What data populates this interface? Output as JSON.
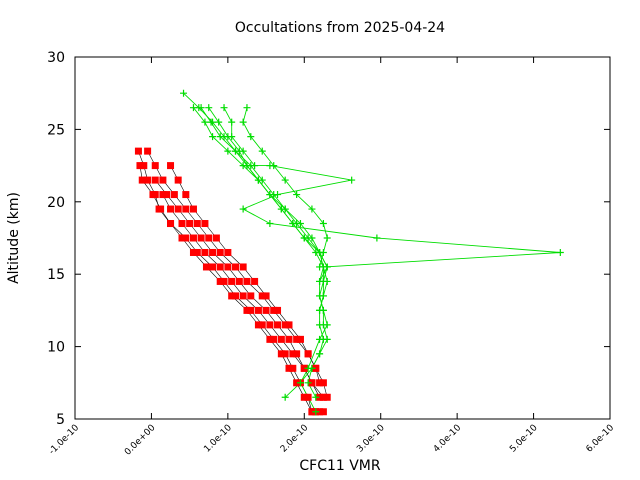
{
  "chart_data": {
    "type": "scatter",
    "title": "Occultations from 2025-04-24",
    "xlabel": "CFC11 VMR",
    "ylabel": "Altitude (km)",
    "xlim": [
      -1e-10,
      6e-10
    ],
    "ylim": [
      5,
      30
    ],
    "x_ticks": [
      -1e-10,
      0,
      1e-10,
      2e-10,
      3e-10,
      4e-10,
      5e-10,
      6e-10
    ],
    "x_tick_labels": [
      "-1.0e-10",
      "0.0e+00",
      "1.0e-10",
      "2.0e-10",
      "3.0e-10",
      "4.0e-10",
      "5.0e-10",
      "6.0e-10"
    ],
    "y_ticks": [
      5,
      10,
      15,
      20,
      25,
      30
    ],
    "y_tick_labels": [
      "5",
      "10",
      "15",
      "20",
      "25",
      "30"
    ],
    "grid": false,
    "colors": {
      "red_series": "#ff0000",
      "green_series": "#00dd00",
      "connector": "#000000"
    },
    "series": [
      {
        "marker": "square",
        "color": "#ff0000",
        "profiles": [
          {
            "x": [
              -1.7e-11,
              -1e-11,
              -5e-12,
              5e-12,
              1e-11,
              2.5e-11,
              4.5e-11,
              6e-11,
              8e-11,
              9.5e-11,
              1.1e-10,
              1.3e-10,
              1.45e-10,
              1.6e-10,
              1.75e-10,
              1.85e-10,
              1.95e-10,
              2.05e-10,
              2.1e-10,
              2.15e-10,
              2.15e-10,
              2.2e-10,
              2.25e-10
            ],
            "y": [
              23.5,
              22.5,
              21.5,
              20.5,
              19.5,
              18.5,
              17.5,
              16.5,
              15.5,
              14.5,
              13.5,
              12.5,
              11.5,
              10.5,
              9.5,
              8.5,
              7.5,
              6.5,
              5.5,
              5.5,
              5.5,
              5.5,
              5.5
            ]
          },
          {
            "x": [
              -1.5e-11,
              -1.2e-11,
              2e-12,
              1.2e-11,
              2.5e-11,
              4e-11,
              5.5e-11,
              7.2e-11,
              9e-11,
              1.05e-10,
              1.25e-10,
              1.4e-10,
              1.55e-10,
              1.7e-10,
              1.8e-10,
              1.9e-10,
              2e-10,
              2.1e-10
            ],
            "y": [
              22.5,
              21.5,
              20.5,
              19.5,
              18.5,
              17.5,
              16.5,
              15.5,
              14.5,
              13.5,
              12.5,
              11.5,
              10.5,
              9.5,
              8.5,
              7.5,
              6.5,
              5.5
            ]
          },
          {
            "x": [
              -5e-12,
              5e-12,
              1.5e-11,
              3e-11,
              4.5e-11,
              6e-11,
              7.5e-11,
              9e-11,
              1.1e-10,
              1.25e-10,
              1.45e-10,
              1.6e-10,
              1.75e-10,
              1.9e-10,
              2.05e-10,
              2.15e-10,
              2.25e-10,
              2.3e-10
            ],
            "y": [
              23.5,
              22.5,
              21.5,
              20.5,
              19.5,
              18.5,
              17.5,
              16.5,
              15.5,
              14.5,
              13.5,
              12.5,
              11.5,
              10.5,
              9.5,
              8.5,
              7.5,
              6.5
            ]
          },
          {
            "x": [
              2.5e-11,
              3.5e-11,
              4.5e-11,
              5.5e-11,
              7e-11,
              8.5e-11,
              1e-10,
              1.2e-10,
              1.35e-10,
              1.5e-10,
              1.65e-10,
              1.8e-10,
              1.95e-10,
              2.05e-10,
              2.15e-10,
              2.2e-10
            ],
            "y": [
              22.5,
              21.5,
              20.5,
              19.5,
              18.5,
              17.5,
              16.5,
              15.5,
              14.5,
              13.5,
              12.5,
              11.5,
              10.5,
              9.5,
              8.5,
              7.5
            ]
          },
          {
            "x": [
              5e-12,
              2e-11,
              3.5e-11,
              5e-11,
              6.5e-11,
              8e-11,
              1e-10,
              1.15e-10,
              1.3e-10,
              1.5e-10,
              1.65e-10,
              1.8e-10,
              1.9e-10,
              2e-10,
              2.1e-10,
              2.2e-10
            ],
            "y": [
              21.5,
              20.5,
              19.5,
              18.5,
              17.5,
              16.5,
              15.5,
              14.5,
              13.5,
              12.5,
              11.5,
              10.5,
              9.5,
              8.5,
              7.5,
              6.5
            ]
          },
          {
            "x": [
              1.5e-11,
              2.5e-11,
              4e-11,
              5.5e-11,
              7e-11,
              9e-11,
              1.05e-10,
              1.2e-10,
              1.4e-10,
              1.55e-10,
              1.7e-10,
              1.85e-10,
              2e-10,
              2.1e-10,
              2.25e-10
            ],
            "y": [
              20.5,
              19.5,
              18.5,
              17.5,
              16.5,
              15.5,
              14.5,
              13.5,
              12.5,
              11.5,
              10.5,
              9.5,
              8.5,
              7.5,
              6.5
            ]
          }
        ]
      },
      {
        "marker": "plus",
        "color": "#00dd00",
        "profiles": [
          {
            "x": [
              4.2e-11,
              6.2e-11,
              8e-11,
              9.5e-11,
              1.1e-10,
              1.25e-10,
              1.4e-10,
              1.55e-10,
              1.7e-10,
              1.85e-10,
              2e-10,
              2.15e-10,
              2.25e-10,
              2.25e-10,
              2.25e-10,
              2.2e-10,
              2.2e-10,
              2.25e-10,
              2.2e-10,
              2.1e-10,
              2.05e-10,
              2.15e-10
            ],
            "y": [
              27.5,
              26.5,
              25.5,
              24.5,
              23.5,
              22.5,
              21.5,
              20.5,
              19.5,
              18.5,
              17.5,
              16.5,
              15.5,
              14.5,
              13.5,
              12.5,
              11.5,
              10.5,
              9.5,
              8.5,
              7.5,
              6.5
            ]
          },
          {
            "x": [
              6.5e-11,
              7.8e-11,
              9e-11,
              1.1e-10,
              1.3e-10,
              1.45e-10,
              1.6e-10,
              1.75e-10,
              1.95e-10,
              2.1e-10,
              2.2e-10,
              2.3e-10,
              2.25e-10,
              2.2e-10,
              2.25e-10,
              2.25e-10,
              2.3e-10,
              2.2e-10,
              2.1e-10,
              1.95e-10,
              2.15e-10
            ],
            "y": [
              26.5,
              25.5,
              24.5,
              23.5,
              22.5,
              21.5,
              20.5,
              19.5,
              18.5,
              17.5,
              16.5,
              15.5,
              14.5,
              13.5,
              12.5,
              11.5,
              10.5,
              9.5,
              8.5,
              7.5,
              5.5
            ]
          },
          {
            "x": [
              7.5e-11,
              8.8e-11,
              1e-10,
              1.15e-10,
              1.25e-10,
              1.4e-10,
              1.55e-10,
              1.7e-10,
              1.85e-10,
              2e-10,
              2.2e-10,
              2.3e-10,
              2.2e-10,
              2.2e-10,
              2.25e-10,
              2.3e-10,
              2.2e-10,
              2.05e-10,
              1.95e-10,
              1.75e-10
            ],
            "y": [
              26.5,
              25.5,
              24.5,
              23.5,
              22.5,
              21.5,
              20.5,
              19.5,
              18.5,
              17.5,
              16.5,
              15.5,
              14.5,
              13.5,
              12.5,
              11.5,
              10.5,
              8.5,
              7.5,
              6.5
            ]
          },
          {
            "x": [
              9.5e-11,
              1.05e-10,
              1.05e-10,
              1.2e-10,
              1.35e-10,
              1.55e-10,
              2.62e-10,
              1.65e-10,
              1.2e-10,
              1.55e-10,
              2.95e-10,
              5.35e-10,
              2.25e-10,
              2.2e-10
            ],
            "y": [
              26.5,
              25.5,
              24.5,
              23.5,
              22.5,
              22.5,
              21.5,
              20.5,
              19.5,
              18.5,
              17.5,
              16.5,
              15.5,
              14.5
            ]
          },
          {
            "x": [
              5.5e-11,
              7e-11,
              8e-11,
              1e-10,
              1.2e-10,
              1.4e-10,
              1.55e-10,
              1.75e-10,
              1.9e-10,
              2.05e-10,
              2.2e-10,
              2.25e-10,
              2.3e-10,
              2.25e-10,
              2.2e-10
            ],
            "y": [
              26.5,
              25.5,
              24.5,
              23.5,
              22.5,
              21.5,
              20.5,
              19.5,
              18.5,
              17.5,
              16.5,
              15.5,
              14.5,
              13.5,
              12.5
            ]
          },
          {
            "x": [
              1.25e-10,
              1.2e-10,
              1.3e-10,
              1.45e-10,
              1.6e-10,
              1.75e-10,
              1.9e-10,
              2.1e-10,
              2.25e-10,
              2.3e-10,
              2.25e-10,
              2.2e-10
            ],
            "y": [
              26.5,
              25.5,
              24.5,
              23.5,
              22.5,
              21.5,
              20.5,
              19.5,
              18.5,
              17.5,
              16.5,
              15.5
            ]
          }
        ]
      }
    ]
  }
}
